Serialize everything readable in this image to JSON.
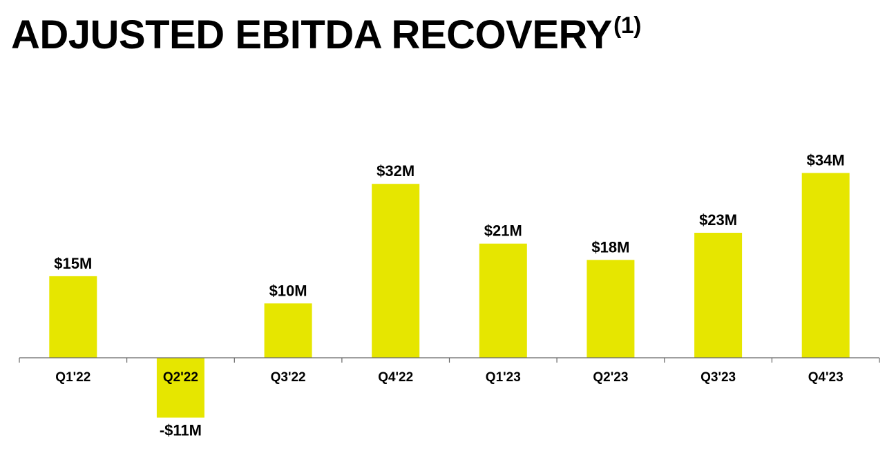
{
  "page": {
    "title": "ADJUSTED EBITDA RECOVERY",
    "title_superscript": "(1)"
  },
  "colors": {
    "bar": "#E6E600",
    "axis": "#666666",
    "text": "#000000",
    "background": "#FFFFFF"
  },
  "chart_data": {
    "type": "bar",
    "title": "ADJUSTED EBITDA RECOVERY(1)",
    "xlabel": "",
    "ylabel": "",
    "grid": false,
    "legend": "none",
    "categories": [
      "Q1'22",
      "Q2'22",
      "Q3'22",
      "Q4'22",
      "Q1'23",
      "Q2'23",
      "Q3'23",
      "Q4'23"
    ],
    "values": [
      15,
      -11,
      10,
      32,
      21,
      18,
      23,
      34
    ],
    "labels": [
      "$15M",
      "-$11M",
      "$10M",
      "$32M",
      "$21M",
      "$18M",
      "$23M",
      "$34M"
    ],
    "unit": "$M",
    "ylim": [
      -12,
      37
    ]
  }
}
